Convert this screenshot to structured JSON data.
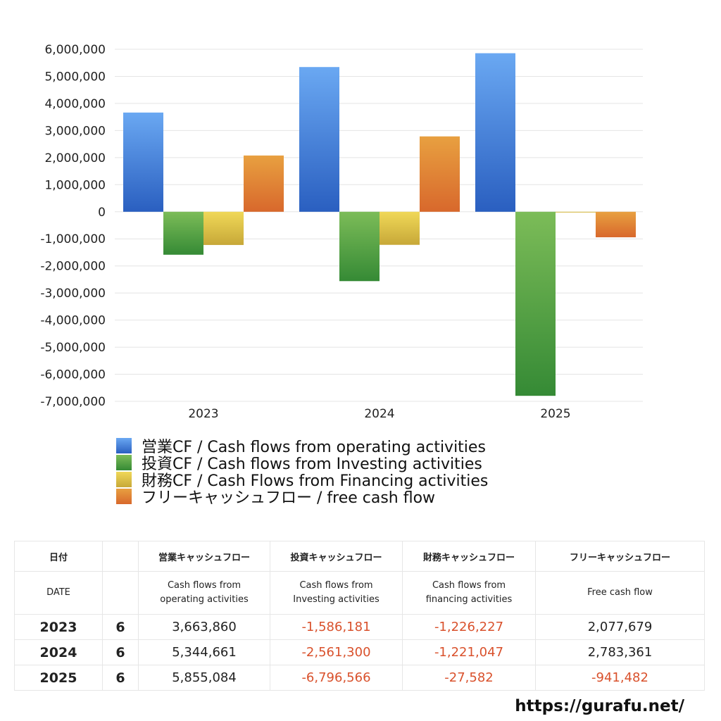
{
  "chart_data": {
    "type": "bar",
    "categories": [
      "2023",
      "2024",
      "2025"
    ],
    "series": [
      {
        "name": "営業CF / Cash flows from operating activities",
        "values": [
          3663860,
          5344661,
          5855084
        ],
        "color_top": "#6aa8f2",
        "color_bottom": "#2a5fc0"
      },
      {
        "name": "投資CF / Cash flows from Investing activities",
        "values": [
          -1586181,
          -2561300,
          -6796566
        ],
        "color_top": "#7cbc58",
        "color_bottom": "#358a35"
      },
      {
        "name": "財務CF / Cash Flows from Financing activities",
        "values": [
          -1226227,
          -1221047,
          -27582
        ],
        "color_top": "#f0d858",
        "color_bottom": "#c7a838"
      },
      {
        "name": "フリーキャッシュフロー / free cash flow",
        "values": [
          2077679,
          2783361,
          -941482
        ],
        "color_top": "#e8a040",
        "color_bottom": "#d8682c"
      }
    ],
    "ylim": [
      -7000000,
      6000000
    ],
    "yticks": [
      "6,000,000",
      "5,000,000",
      "4,000,000",
      "3,000,000",
      "2,000,000",
      "1,000,000",
      "0",
      "-1,000,000",
      "-2,000,000",
      "-3,000,000",
      "-4,000,000",
      "-5,000,000",
      "-6,000,000",
      "-7,000,000"
    ],
    "grid": true,
    "legend_position": "bottom"
  },
  "table": {
    "header1": [
      "日付",
      "",
      "営業キャッシュフロー",
      "投資キャッシュフロー",
      "財務キャッシュフロー",
      "フリーキャッシュフロー"
    ],
    "header2": {
      "date": "DATE",
      "operating": [
        "Cash flows from",
        "operating activities"
      ],
      "investing": [
        "Cash flows from",
        "Investing activities"
      ],
      "financing": [
        "Cash flows from",
        "financing activities"
      ],
      "free": "Free cash flow"
    },
    "rows": [
      {
        "year": "2023",
        "month": "6",
        "operating": "3,663,860",
        "investing": "-1,586,181",
        "financing": "-1,226,227",
        "free": "2,077,679"
      },
      {
        "year": "2024",
        "month": "6",
        "operating": "5,344,661",
        "investing": "-2,561,300",
        "financing": "-1,221,047",
        "free": "2,783,361"
      },
      {
        "year": "2025",
        "month": "6",
        "operating": "5,855,084",
        "investing": "-6,796,566",
        "financing": "-27,582",
        "free": "-941,482"
      }
    ],
    "negative_color": "#d9512c"
  },
  "footer": {
    "url": "https://gurafu.net/"
  }
}
